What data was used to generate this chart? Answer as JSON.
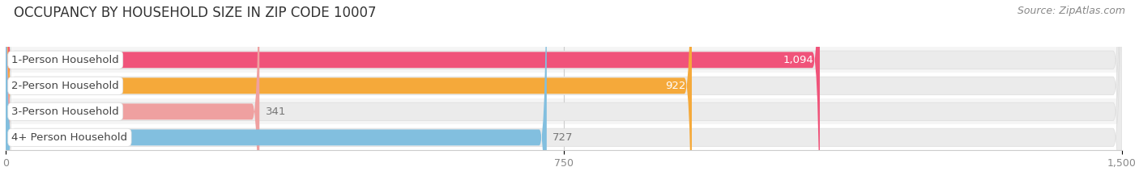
{
  "title": "OCCUPANCY BY HOUSEHOLD SIZE IN ZIP CODE 10007",
  "source": "Source: ZipAtlas.com",
  "categories": [
    "1-Person Household",
    "2-Person Household",
    "3-Person Household",
    "4+ Person Household"
  ],
  "values": [
    1094,
    922,
    341,
    727
  ],
  "bar_colors": [
    "#F0537A",
    "#F5A93A",
    "#EFA0A0",
    "#82BFDF"
  ],
  "value_label_colors": [
    "#FFFFFF",
    "#FFFFFF",
    "#888888",
    "#888888"
  ],
  "value_label_inside": [
    true,
    true,
    false,
    false
  ],
  "xlim": [
    0,
    1500
  ],
  "xticks": [
    0,
    750,
    1500
  ],
  "title_fontsize": 12,
  "source_fontsize": 9,
  "bar_label_fontsize": 9.5,
  "value_label_fontsize": 9.5,
  "background_color": "#FFFFFF",
  "bar_height": 0.62,
  "row_bg_colors": [
    "#F5F5F5",
    "#FFFFFF",
    "#F5F5F5",
    "#FFFFFF"
  ],
  "track_color": "#EBEBEB",
  "track_border_color": "#DDDDDD"
}
